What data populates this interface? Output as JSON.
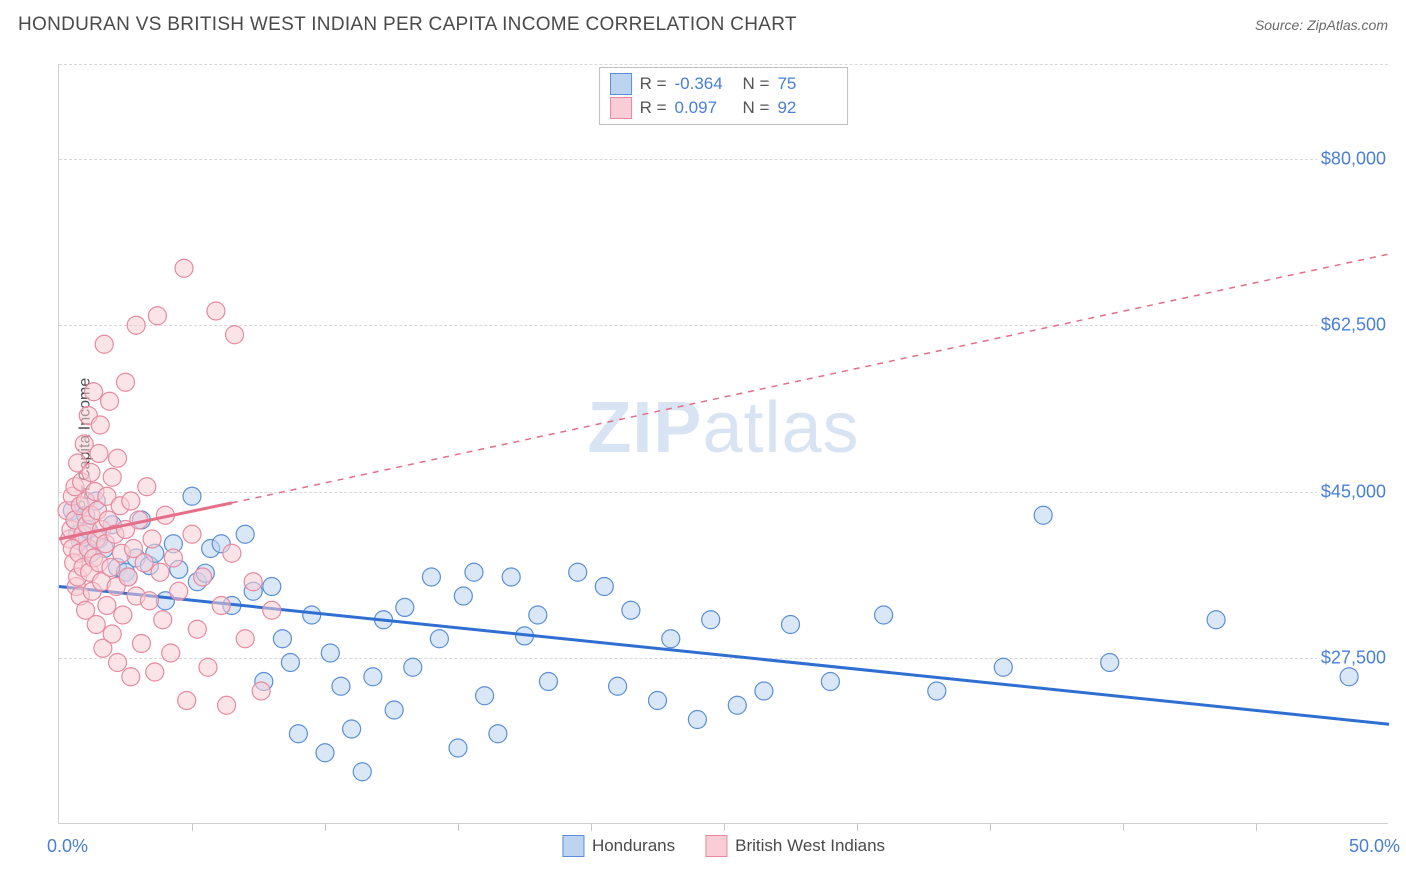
{
  "title": "HONDURAN VS BRITISH WEST INDIAN PER CAPITA INCOME CORRELATION CHART",
  "source": "Source: ZipAtlas.com",
  "watermark_zip": "ZIP",
  "watermark_atlas": "atlas",
  "yaxis_title": "Per Capita Income",
  "chart": {
    "type": "scatter",
    "xlim": [
      0,
      50
    ],
    "ylim": [
      10000,
      90000
    ],
    "x_label_min": "0.0%",
    "x_label_max": "50.0%",
    "x_ticks": [
      5,
      10,
      15,
      20,
      25,
      30,
      35,
      40,
      45
    ],
    "y_ticks": [
      {
        "val": 27500,
        "label": "$27,500"
      },
      {
        "val": 45000,
        "label": "$45,000"
      },
      {
        "val": 62500,
        "label": "$62,500"
      },
      {
        "val": 80000,
        "label": "$80,000"
      }
    ],
    "colors": {
      "blue_fill": "#bcd4f0",
      "blue_stroke": "#5a8fd6",
      "blue_line": "#2e6fd1",
      "pink_fill": "#f8cdd6",
      "pink_stroke": "#e7899f",
      "pink_line": "#e56e88",
      "text": "#4a4a4a",
      "axis_value": "#4a7fd8",
      "grid": "#d8d8d8"
    },
    "marker_radius": 9,
    "marker_opacity": 0.55,
    "line_width_solid": 3,
    "line_width_dash": 1.5,
    "series": [
      {
        "name": "Hondurans",
        "color_key": "blue",
        "r": "-0.364",
        "n": "75",
        "trend_solid": {
          "x1": 0,
          "y1": 35000,
          "x2": 50,
          "y2": 20500
        },
        "points": [
          [
            0.5,
            43000
          ],
          [
            0.6,
            42000
          ],
          [
            0.7,
            40500
          ],
          [
            0.8,
            39800
          ],
          [
            1.0,
            42500
          ],
          [
            1.1,
            41000
          ],
          [
            1.2,
            38500
          ],
          [
            1.4,
            44000
          ],
          [
            1.5,
            40000
          ],
          [
            1.7,
            39000
          ],
          [
            2.0,
            41500
          ],
          [
            2.2,
            37000
          ],
          [
            2.5,
            36500
          ],
          [
            2.6,
            36000
          ],
          [
            2.9,
            38000
          ],
          [
            3.1,
            42000
          ],
          [
            3.4,
            37200
          ],
          [
            3.6,
            38500
          ],
          [
            4.0,
            33500
          ],
          [
            4.3,
            39500
          ],
          [
            4.5,
            36800
          ],
          [
            5.0,
            44500
          ],
          [
            5.2,
            35500
          ],
          [
            5.5,
            36400
          ],
          [
            5.7,
            39000
          ],
          [
            6.1,
            39500
          ],
          [
            6.5,
            33000
          ],
          [
            7.0,
            40500
          ],
          [
            7.3,
            34500
          ],
          [
            7.7,
            25000
          ],
          [
            8.0,
            35000
          ],
          [
            8.4,
            29500
          ],
          [
            8.7,
            27000
          ],
          [
            9.0,
            19500
          ],
          [
            9.5,
            32000
          ],
          [
            10.0,
            17500
          ],
          [
            10.2,
            28000
          ],
          [
            10.6,
            24500
          ],
          [
            11.0,
            20000
          ],
          [
            11.4,
            15500
          ],
          [
            11.8,
            25500
          ],
          [
            12.2,
            31500
          ],
          [
            12.6,
            22000
          ],
          [
            13.0,
            32800
          ],
          [
            13.3,
            26500
          ],
          [
            14.0,
            36000
          ],
          [
            14.3,
            29500
          ],
          [
            15.0,
            18000
          ],
          [
            15.2,
            34000
          ],
          [
            15.6,
            36500
          ],
          [
            16.0,
            23500
          ],
          [
            16.5,
            19500
          ],
          [
            17.0,
            36000
          ],
          [
            17.5,
            29800
          ],
          [
            18.0,
            32000
          ],
          [
            18.4,
            25000
          ],
          [
            19.5,
            36500
          ],
          [
            20.5,
            35000
          ],
          [
            21.0,
            24500
          ],
          [
            21.5,
            32500
          ],
          [
            22.5,
            23000
          ],
          [
            23.0,
            29500
          ],
          [
            24.0,
            21000
          ],
          [
            24.5,
            31500
          ],
          [
            25.5,
            22500
          ],
          [
            26.5,
            24000
          ],
          [
            27.5,
            31000
          ],
          [
            29.0,
            25000
          ],
          [
            31.0,
            32000
          ],
          [
            33.0,
            24000
          ],
          [
            35.5,
            26500
          ],
          [
            37.0,
            42500
          ],
          [
            39.5,
            27000
          ],
          [
            43.5,
            31500
          ],
          [
            48.5,
            25500
          ]
        ]
      },
      {
        "name": "British West Indians",
        "color_key": "pink",
        "r": "0.097",
        "n": "92",
        "trend_solid": {
          "x1": 0,
          "y1": 40000,
          "x2": 6.5,
          "y2": 43800
        },
        "trend_dash": {
          "x1": 6.5,
          "y1": 43800,
          "x2": 50,
          "y2": 70000
        },
        "points": [
          [
            0.3,
            43000
          ],
          [
            0.4,
            40000
          ],
          [
            0.45,
            41000
          ],
          [
            0.5,
            44500
          ],
          [
            0.5,
            39000
          ],
          [
            0.55,
            37500
          ],
          [
            0.6,
            42000
          ],
          [
            0.6,
            45500
          ],
          [
            0.65,
            35000
          ],
          [
            0.7,
            36000
          ],
          [
            0.7,
            48000
          ],
          [
            0.75,
            38500
          ],
          [
            0.8,
            43500
          ],
          [
            0.8,
            34000
          ],
          [
            0.85,
            46000
          ],
          [
            0.9,
            37000
          ],
          [
            0.9,
            40500
          ],
          [
            0.95,
            50000
          ],
          [
            1.0,
            44000
          ],
          [
            1.0,
            32500
          ],
          [
            1.05,
            41500
          ],
          [
            1.1,
            39000
          ],
          [
            1.1,
            53000
          ],
          [
            1.15,
            36500
          ],
          [
            1.2,
            47000
          ],
          [
            1.2,
            42500
          ],
          [
            1.25,
            34500
          ],
          [
            1.3,
            55500
          ],
          [
            1.3,
            38000
          ],
          [
            1.35,
            45000
          ],
          [
            1.4,
            40000
          ],
          [
            1.4,
            31000
          ],
          [
            1.45,
            43000
          ],
          [
            1.5,
            49000
          ],
          [
            1.5,
            37500
          ],
          [
            1.55,
            52000
          ],
          [
            1.6,
            41000
          ],
          [
            1.6,
            35500
          ],
          [
            1.65,
            28500
          ],
          [
            1.7,
            60500
          ],
          [
            1.75,
            39500
          ],
          [
            1.8,
            44500
          ],
          [
            1.8,
            33000
          ],
          [
            1.85,
            42000
          ],
          [
            1.9,
            54500
          ],
          [
            1.95,
            37000
          ],
          [
            2.0,
            46500
          ],
          [
            2.0,
            30000
          ],
          [
            2.1,
            40500
          ],
          [
            2.15,
            35000
          ],
          [
            2.2,
            48500
          ],
          [
            2.2,
            27000
          ],
          [
            2.3,
            43500
          ],
          [
            2.35,
            38500
          ],
          [
            2.4,
            32000
          ],
          [
            2.5,
            56500
          ],
          [
            2.5,
            41000
          ],
          [
            2.6,
            36000
          ],
          [
            2.7,
            44000
          ],
          [
            2.7,
            25500
          ],
          [
            2.8,
            39000
          ],
          [
            2.9,
            34000
          ],
          [
            2.9,
            62500
          ],
          [
            3.0,
            42000
          ],
          [
            3.1,
            29000
          ],
          [
            3.2,
            37500
          ],
          [
            3.3,
            45500
          ],
          [
            3.4,
            33500
          ],
          [
            3.5,
            40000
          ],
          [
            3.6,
            26000
          ],
          [
            3.7,
            63500
          ],
          [
            3.8,
            36500
          ],
          [
            3.9,
            31500
          ],
          [
            4.0,
            42500
          ],
          [
            4.2,
            28000
          ],
          [
            4.3,
            38000
          ],
          [
            4.5,
            34500
          ],
          [
            4.7,
            68500
          ],
          [
            4.8,
            23000
          ],
          [
            5.0,
            40500
          ],
          [
            5.2,
            30500
          ],
          [
            5.4,
            36000
          ],
          [
            5.6,
            26500
          ],
          [
            5.9,
            64000
          ],
          [
            6.1,
            33000
          ],
          [
            6.3,
            22500
          ],
          [
            6.5,
            38500
          ],
          [
            6.6,
            61500
          ],
          [
            7.0,
            29500
          ],
          [
            7.3,
            35500
          ],
          [
            7.6,
            24000
          ],
          [
            8.0,
            32500
          ]
        ]
      }
    ]
  },
  "stats_legend": {
    "r_label": "R =",
    "n_label": "N ="
  }
}
